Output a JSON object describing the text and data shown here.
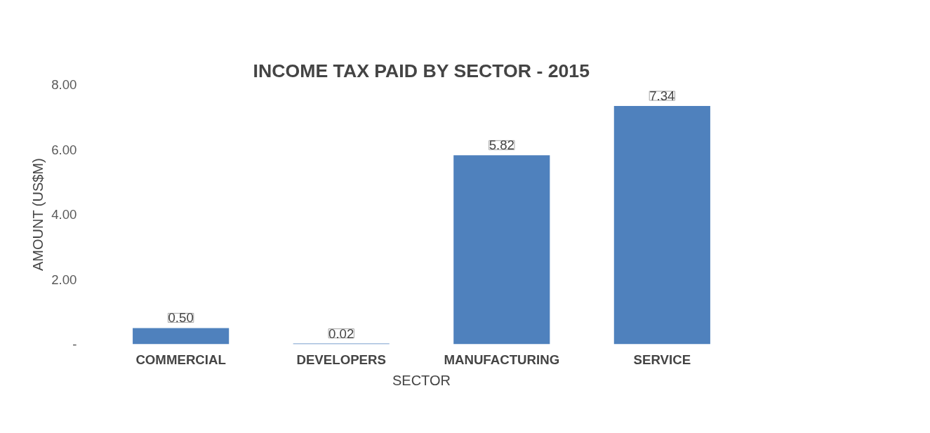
{
  "chart_data": {
    "type": "bar",
    "title": "INCOME TAX PAID BY SECTOR - 2015",
    "xlabel": "SECTOR",
    "ylabel": "AMOUNT (US$M)",
    "categories": [
      "COMMERCIAL",
      "DEVELOPERS",
      "MANUFACTURING",
      "SERVICE"
    ],
    "values": [
      0.5,
      0.02,
      5.82,
      7.34
    ],
    "color": "#4f81bd",
    "ylim": [
      0,
      8
    ],
    "yticks": [
      {
        "value": 0,
        "label": "-"
      },
      {
        "value": 2,
        "label": "2.00"
      },
      {
        "value": 4,
        "label": "4.00"
      },
      {
        "value": 6,
        "label": "6.00"
      },
      {
        "value": 8,
        "label": "8.00"
      }
    ],
    "data_labels": true,
    "value_labels": [
      "0.50",
      "0.02",
      "5.82",
      "7.34"
    ],
    "grid": false
  }
}
